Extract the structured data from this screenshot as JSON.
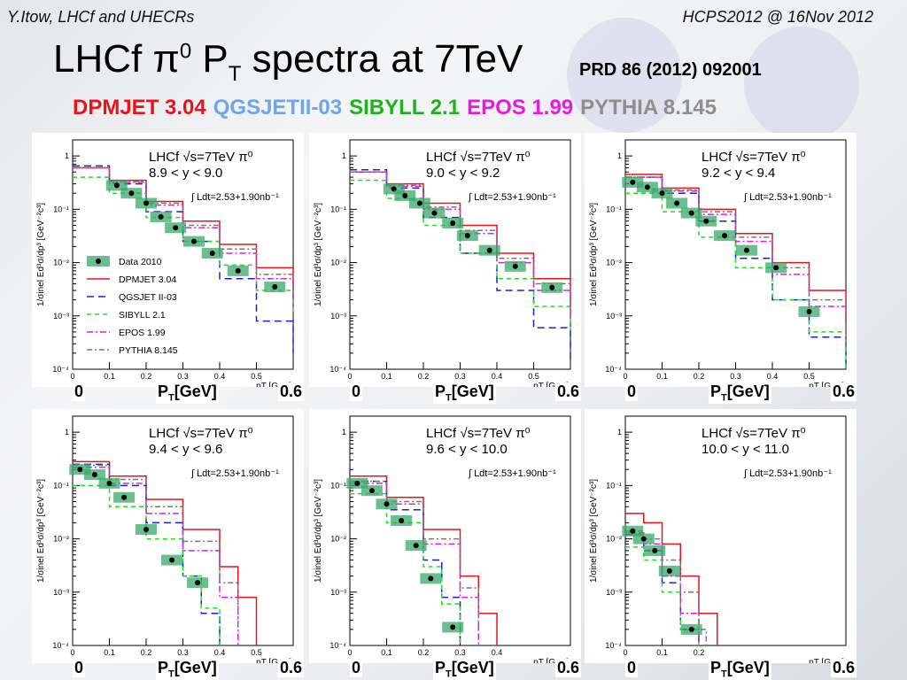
{
  "header": {
    "left": "Y.Itow,  LHCf and UHECRs",
    "right": "HCPS2012 @ 16Nov 2012"
  },
  "title": {
    "main": "LHCf ",
    "pi": "π",
    "pi_sup": "0",
    "p": " P",
    "p_sub": "T",
    "rest": " spectra at 7TeV"
  },
  "reference": "PRD 86 (2012) 092001",
  "models": [
    {
      "text": "DPMJET 3.04",
      "color": "#e8141c"
    },
    {
      "text": "QGSJETII-03",
      "color": "#6ea6e8"
    },
    {
      "text": "SIBYLL 2.1",
      "color": "#1db31d"
    },
    {
      "text": "EPOS 1.99",
      "color": "#e81ae0"
    },
    {
      "text": "PYTHIA 8.145",
      "color": "#8e8e8e"
    }
  ],
  "axis_overlay": {
    "pt_main": "P",
    "pt_sub": "T",
    "pt_unit": "[GeV]",
    "x_min_label": "0",
    "x_max_label": "0.6"
  },
  "colors": {
    "data": "#000000",
    "sys_band": "#3aa86b",
    "dpmjet": "#e8141c",
    "qgsjet": "#1f1fcf",
    "sibyll": "#22dd22",
    "epos": "#e81ae0",
    "pythia": "#777777"
  },
  "chart_data": [
    {
      "type": "scatter",
      "experiment": "LHCf √s=7TeV π⁰",
      "rapidity": "8.9 < y < 9.0",
      "lumi": "∫ Ldt=2.53+1.90nb⁻¹",
      "ylabel": "1/σinel Ed³σ/dp³ [GeV⁻²c³]",
      "xlabel": "pT [GeV]",
      "log_y": true,
      "ylim": [
        0.0001,
        2
      ],
      "xlim": [
        0,
        0.6
      ],
      "yticks": [
        "10⁻⁴",
        "10⁻³",
        "10⁻²",
        "10⁻¹",
        "1"
      ],
      "xticks": [
        "0",
        "0.1",
        "0.2",
        "0.3",
        "0.4",
        "0.5"
      ],
      "legend": [
        "Data 2010",
        "DPMJET 3.04",
        "QGSJET II-03",
        "SIBYLL 2.1",
        "EPOS 1.99",
        "PYTHIA 8.145"
      ],
      "data": {
        "x": [
          0.12,
          0.16,
          0.2,
          0.24,
          0.28,
          0.33,
          0.38,
          0.45,
          0.55
        ],
        "y": [
          0.28,
          0.2,
          0.13,
          0.072,
          0.045,
          0.025,
          0.015,
          0.007,
          0.0035
        ]
      },
      "series": [
        {
          "name": "DPMJET 3.04",
          "x": [
            0,
            0.1,
            0.2,
            0.3,
            0.4,
            0.5,
            0.6
          ],
          "y": [
            0.6,
            0.35,
            0.14,
            0.06,
            0.022,
            0.008,
            0.002
          ]
        },
        {
          "name": "QGSJET II-03",
          "x": [
            0,
            0.1,
            0.2,
            0.3,
            0.4,
            0.5,
            0.6
          ],
          "y": [
            0.65,
            0.3,
            0.09,
            0.025,
            0.005,
            0.0008,
            0.0002
          ]
        },
        {
          "name": "SIBYLL 2.1",
          "x": [
            0,
            0.1,
            0.2,
            0.3,
            0.4,
            0.5,
            0.6
          ],
          "y": [
            0.4,
            0.2,
            0.07,
            0.025,
            0.009,
            0.003,
            0.001
          ]
        },
        {
          "name": "EPOS 1.99",
          "x": [
            0,
            0.1,
            0.2,
            0.3,
            0.4,
            0.5,
            0.6
          ],
          "y": [
            0.6,
            0.32,
            0.12,
            0.045,
            0.015,
            0.005,
            0.0015
          ]
        },
        {
          "name": "PYTHIA 8.145",
          "x": [
            0,
            0.1,
            0.2,
            0.3,
            0.4,
            0.5,
            0.6
          ],
          "y": [
            0.6,
            0.33,
            0.13,
            0.05,
            0.018,
            0.006,
            0.002
          ]
        }
      ]
    },
    {
      "type": "scatter",
      "experiment": "LHCf √s=7TeV π⁰",
      "rapidity": "9.0 < y < 9.2",
      "lumi": "∫ Ldt=2.53+1.90nb⁻¹",
      "ylabel": "1/σinel Ed³σ/dp³ [GeV⁻²c³]",
      "xlabel": "pT [GeV]",
      "log_y": true,
      "ylim": [
        0.0001,
        2
      ],
      "xlim": [
        0,
        0.6
      ],
      "yticks": [
        "10⁻⁴",
        "10⁻³",
        "10⁻²",
        "10⁻¹",
        "1"
      ],
      "xticks": [
        "0",
        "0.1",
        "0.2",
        "0.3",
        "0.4",
        "0.5"
      ],
      "data": {
        "x": [
          0.12,
          0.15,
          0.19,
          0.23,
          0.28,
          0.32,
          0.38,
          0.45,
          0.55
        ],
        "y": [
          0.24,
          0.18,
          0.13,
          0.085,
          0.055,
          0.032,
          0.017,
          0.0085,
          0.0034
        ]
      },
      "series": [
        {
          "name": "DPMJET 3.04",
          "x": [
            0,
            0.1,
            0.2,
            0.3,
            0.4,
            0.5,
            0.6
          ],
          "y": [
            0.5,
            0.3,
            0.13,
            0.05,
            0.015,
            0.005,
            0.0015
          ]
        },
        {
          "name": "QGSJET II-03",
          "x": [
            0,
            0.1,
            0.2,
            0.3,
            0.4,
            0.5,
            0.6
          ],
          "y": [
            0.55,
            0.25,
            0.07,
            0.015,
            0.003,
            0.0006,
            0.00015
          ]
        },
        {
          "name": "SIBYLL 2.1",
          "x": [
            0,
            0.1,
            0.2,
            0.3,
            0.4,
            0.5,
            0.6
          ],
          "y": [
            0.35,
            0.16,
            0.05,
            0.015,
            0.005,
            0.0015,
            0.0005
          ]
        },
        {
          "name": "EPOS 1.99",
          "x": [
            0,
            0.1,
            0.2,
            0.3,
            0.4,
            0.5,
            0.6
          ],
          "y": [
            0.5,
            0.27,
            0.1,
            0.035,
            0.01,
            0.003,
            0.001
          ]
        },
        {
          "name": "PYTHIA 8.145",
          "x": [
            0,
            0.1,
            0.2,
            0.3,
            0.4,
            0.5,
            0.6
          ],
          "y": [
            0.5,
            0.28,
            0.11,
            0.04,
            0.012,
            0.004,
            0.0012
          ]
        }
      ]
    },
    {
      "type": "scatter",
      "experiment": "LHCf √s=7TeV π⁰",
      "rapidity": "9.2 < y < 9.4",
      "lumi": "∫ Ldt=2.53+1.90nb⁻¹",
      "ylabel": "1/σinel Ed³σ/dp³ [GeV⁻²c³]",
      "xlabel": "pT [GeV]",
      "log_y": true,
      "ylim": [
        0.0001,
        2
      ],
      "xlim": [
        0,
        0.6
      ],
      "yticks": [
        "10⁻⁴",
        "10⁻³",
        "10⁻²",
        "10⁻¹",
        "1"
      ],
      "xticks": [
        "0",
        "0.1",
        "0.2",
        "0.3",
        "0.4",
        "0.5"
      ],
      "data": {
        "x": [
          0.02,
          0.06,
          0.1,
          0.14,
          0.18,
          0.22,
          0.27,
          0.33,
          0.41,
          0.5
        ],
        "y": [
          0.32,
          0.26,
          0.2,
          0.13,
          0.085,
          0.06,
          0.032,
          0.017,
          0.008,
          0.0012
        ]
      },
      "series": [
        {
          "name": "DPMJET 3.04",
          "x": [
            0,
            0.1,
            0.2,
            0.3,
            0.4,
            0.5,
            0.6
          ],
          "y": [
            0.45,
            0.25,
            0.1,
            0.035,
            0.01,
            0.003,
            0.0008
          ]
        },
        {
          "name": "QGSJET II-03",
          "x": [
            0,
            0.1,
            0.2,
            0.3,
            0.4,
            0.5,
            0.6
          ],
          "y": [
            0.4,
            0.2,
            0.06,
            0.012,
            0.002,
            0.0004,
            0.0001
          ]
        },
        {
          "name": "SIBYLL 2.1",
          "x": [
            0,
            0.1,
            0.2,
            0.3,
            0.4,
            0.5,
            0.6
          ],
          "y": [
            0.2,
            0.09,
            0.03,
            0.008,
            0.002,
            0.0005,
            0.0001
          ]
        },
        {
          "name": "EPOS 1.99",
          "x": [
            0,
            0.1,
            0.2,
            0.3,
            0.4,
            0.5,
            0.6
          ],
          "y": [
            0.4,
            0.22,
            0.08,
            0.025,
            0.006,
            0.0015,
            0.0003
          ]
        },
        {
          "name": "PYTHIA 8.145",
          "x": [
            0,
            0.1,
            0.2,
            0.3,
            0.4,
            0.5,
            0.6
          ],
          "y": [
            0.4,
            0.23,
            0.09,
            0.03,
            0.008,
            0.002,
            0.0005
          ]
        }
      ]
    },
    {
      "type": "scatter",
      "experiment": "LHCf √s=7TeV π⁰",
      "rapidity": "9.4 < y < 9.6",
      "lumi": "∫ Ldt=2.53+1.90nb⁻¹",
      "ylabel": "1/σinel Ed³σ/dp³ [GeV⁻²c³]",
      "xlabel": "pT [GeV]",
      "log_y": true,
      "ylim": [
        0.0001,
        2
      ],
      "xlim": [
        0,
        0.6
      ],
      "yticks": [
        "10⁻⁴",
        "10⁻³",
        "10⁻²",
        "10⁻¹",
        "1"
      ],
      "xticks": [
        "0",
        "0.1",
        "0.2",
        "0.3",
        "0.4",
        "0.5"
      ],
      "data": {
        "x": [
          0.02,
          0.06,
          0.1,
          0.14,
          0.2,
          0.27,
          0.34
        ],
        "y": [
          0.2,
          0.16,
          0.11,
          0.06,
          0.015,
          0.004,
          0.0015
        ]
      },
      "series": [
        {
          "name": "DPMJET 3.04",
          "x": [
            0,
            0.1,
            0.2,
            0.3,
            0.4,
            0.45,
            0.5
          ],
          "y": [
            0.28,
            0.15,
            0.055,
            0.015,
            0.003,
            0.0008,
            0.0001
          ]
        },
        {
          "name": "QGSJET II-03",
          "x": [
            0,
            0.1,
            0.2,
            0.3,
            0.35,
            0.4
          ],
          "y": [
            0.25,
            0.1,
            0.02,
            0.002,
            0.0004,
            0.0001
          ]
        },
        {
          "name": "SIBYLL 2.1",
          "x": [
            0,
            0.1,
            0.2,
            0.3,
            0.35,
            0.4
          ],
          "y": [
            0.1,
            0.04,
            0.01,
            0.002,
            0.0005,
            0.0001
          ]
        },
        {
          "name": "EPOS 1.99",
          "x": [
            0,
            0.1,
            0.2,
            0.3,
            0.4,
            0.45
          ],
          "y": [
            0.22,
            0.11,
            0.03,
            0.006,
            0.0008,
            0.0001
          ]
        },
        {
          "name": "PYTHIA 8.145",
          "x": [
            0,
            0.1,
            0.2,
            0.3,
            0.4,
            0.45
          ],
          "y": [
            0.24,
            0.13,
            0.04,
            0.009,
            0.0015,
            0.0002
          ]
        }
      ]
    },
    {
      "type": "scatter",
      "experiment": "LHCf √s=7TeV π⁰",
      "rapidity": "9.6 < y < 10.0",
      "lumi": "∫ Ldt=2.53+1.90nb⁻¹",
      "ylabel": "1/σinel Ed³σ/dp³ [GeV⁻²c³]",
      "xlabel": "pT [GeV]",
      "log_y": true,
      "ylim": [
        0.0001,
        2
      ],
      "xlim": [
        0,
        0.6
      ],
      "yticks": [
        "10⁻⁴",
        "10⁻³",
        "10⁻²",
        "10⁻¹",
        "1"
      ],
      "xticks": [
        "0",
        "0.1",
        "0.2",
        "0.3",
        "0.4"
      ],
      "data": {
        "x": [
          0.02,
          0.06,
          0.1,
          0.14,
          0.18,
          0.22,
          0.28
        ],
        "y": [
          0.11,
          0.08,
          0.045,
          0.022,
          0.0075,
          0.0018,
          0.00022
        ]
      },
      "series": [
        {
          "name": "DPMJET 3.04",
          "x": [
            0,
            0.1,
            0.2,
            0.3,
            0.35,
            0.4
          ],
          "y": [
            0.15,
            0.06,
            0.015,
            0.002,
            0.0004,
            0.0001
          ]
        },
        {
          "name": "QGSJET II-03",
          "x": [
            0,
            0.1,
            0.2,
            0.25,
            0.3
          ],
          "y": [
            0.12,
            0.035,
            0.004,
            0.0008,
            0.0001
          ]
        },
        {
          "name": "SIBYLL 2.1",
          "x": [
            0,
            0.1,
            0.2,
            0.25,
            0.3
          ],
          "y": [
            0.07,
            0.02,
            0.003,
            0.0006,
            0.0001
          ]
        },
        {
          "name": "EPOS 1.99",
          "x": [
            0,
            0.1,
            0.2,
            0.3,
            0.35
          ],
          "y": [
            0.11,
            0.045,
            0.008,
            0.0008,
            0.0001
          ]
        },
        {
          "name": "PYTHIA 8.145",
          "x": [
            0,
            0.1,
            0.2,
            0.3,
            0.35
          ],
          "y": [
            0.12,
            0.05,
            0.01,
            0.0012,
            0.0002
          ]
        }
      ]
    },
    {
      "type": "scatter",
      "experiment": "LHCf √s=7TeV π⁰",
      "rapidity": "10.0 < y < 11.0",
      "lumi": "∫ Ldt=2.53+1.90nb⁻¹",
      "ylabel": "1/σinel Ed³σ/dp³ [GeV⁻²c³]",
      "xlabel": "pT [GeV]",
      "log_y": true,
      "ylim": [
        0.0001,
        2
      ],
      "xlim": [
        0,
        0.6
      ],
      "yticks": [
        "10⁻⁴",
        "10⁻³",
        "10⁻²",
        "10⁻¹",
        "1"
      ],
      "xticks": [
        "0",
        "0.1",
        "0.2"
      ],
      "data": {
        "x": [
          0.02,
          0.05,
          0.08,
          0.12,
          0.18
        ],
        "y": [
          0.014,
          0.01,
          0.006,
          0.0025,
          0.0002
        ]
      },
      "series": [
        {
          "name": "DPMJET 3.04",
          "x": [
            0,
            0.05,
            0.1,
            0.15,
            0.2,
            0.25
          ],
          "y": [
            0.03,
            0.02,
            0.008,
            0.002,
            0.0004,
            0.0001
          ]
        },
        {
          "name": "QGSJET II-03",
          "x": [
            0,
            0.05,
            0.1,
            0.15,
            0.2
          ],
          "y": [
            0.012,
            0.006,
            0.0015,
            0.0002,
            0.0001
          ]
        },
        {
          "name": "SIBYLL 2.1",
          "x": [
            0,
            0.05,
            0.1,
            0.15,
            0.2
          ],
          "y": [
            0.007,
            0.004,
            0.001,
            0.0002,
            0.0001
          ]
        },
        {
          "name": "EPOS 1.99",
          "x": [
            0,
            0.05,
            0.1,
            0.15,
            0.2
          ],
          "y": [
            0.013,
            0.008,
            0.002,
            0.0004,
            0.0001
          ]
        },
        {
          "name": "PYTHIA 8.145",
          "x": [
            0,
            0.05,
            0.1,
            0.15,
            0.2,
            0.22
          ],
          "y": [
            0.014,
            0.01,
            0.004,
            0.001,
            0.0002,
            0.0001
          ]
        }
      ]
    }
  ]
}
